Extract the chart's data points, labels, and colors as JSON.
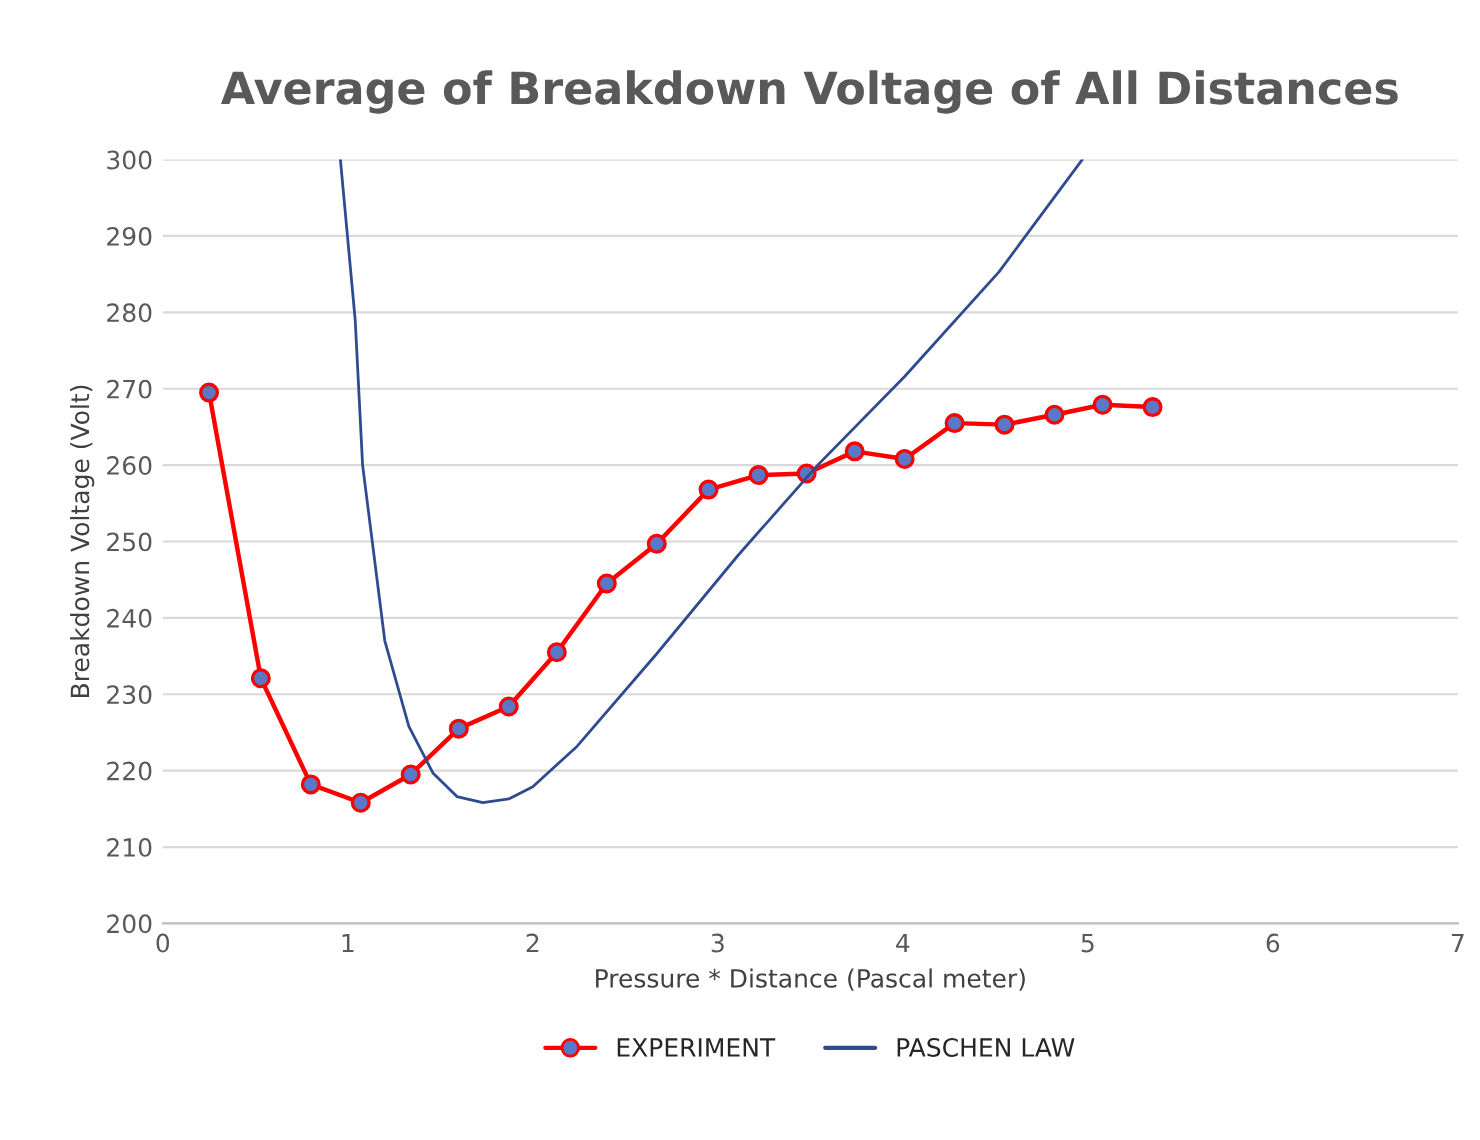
{
  "chart_data": {
    "type": "line",
    "title": "Average of Breakdown Voltage of All Distances",
    "xlabel": "Pressure * Distance (Pascal meter)",
    "ylabel": "Breakdown Voltage (Volt)",
    "xlim": [
      0,
      7
    ],
    "xticks": [
      0,
      1,
      2,
      3,
      4,
      5,
      6,
      7
    ],
    "ylim": [
      200,
      300
    ],
    "yticks": [
      200,
      210,
      220,
      230,
      240,
      250,
      260,
      270,
      280,
      290,
      300
    ],
    "grid": "y",
    "legend": "bottom",
    "series": [
      {
        "name": "EXPERIMENT",
        "color": "#ff0000",
        "marker": "circle",
        "x": [
          0.25,
          0.53,
          0.8,
          1.07,
          1.34,
          1.6,
          1.87,
          2.13,
          2.4,
          2.67,
          2.95,
          3.22,
          3.48,
          3.74,
          4.01,
          4.28,
          4.55,
          4.82,
          5.08,
          5.35
        ],
        "values": [
          269.5,
          232.1,
          218.2,
          215.8,
          219.5,
          225.5,
          228.4,
          235.5,
          244.5,
          249.7,
          256.8,
          258.7,
          258.9,
          261.8,
          260.8,
          265.5,
          265.3,
          266.6,
          267.9,
          267.6
        ]
      },
      {
        "name": "PASCHEN LAW",
        "color": "#2f4b8f",
        "marker": "none",
        "x": [
          0.96,
          1.04,
          1.08,
          1.2,
          1.33,
          1.46,
          1.59,
          1.73,
          1.87,
          2.0,
          2.24,
          2.67,
          3.11,
          3.54,
          4.01,
          4.52,
          4.97
        ],
        "values": [
          300,
          279,
          260,
          237,
          225.8,
          219.7,
          216.6,
          215.8,
          216.3,
          217.9,
          223.2,
          235.3,
          248.2,
          260,
          271.6,
          285.3,
          300
        ]
      }
    ]
  }
}
